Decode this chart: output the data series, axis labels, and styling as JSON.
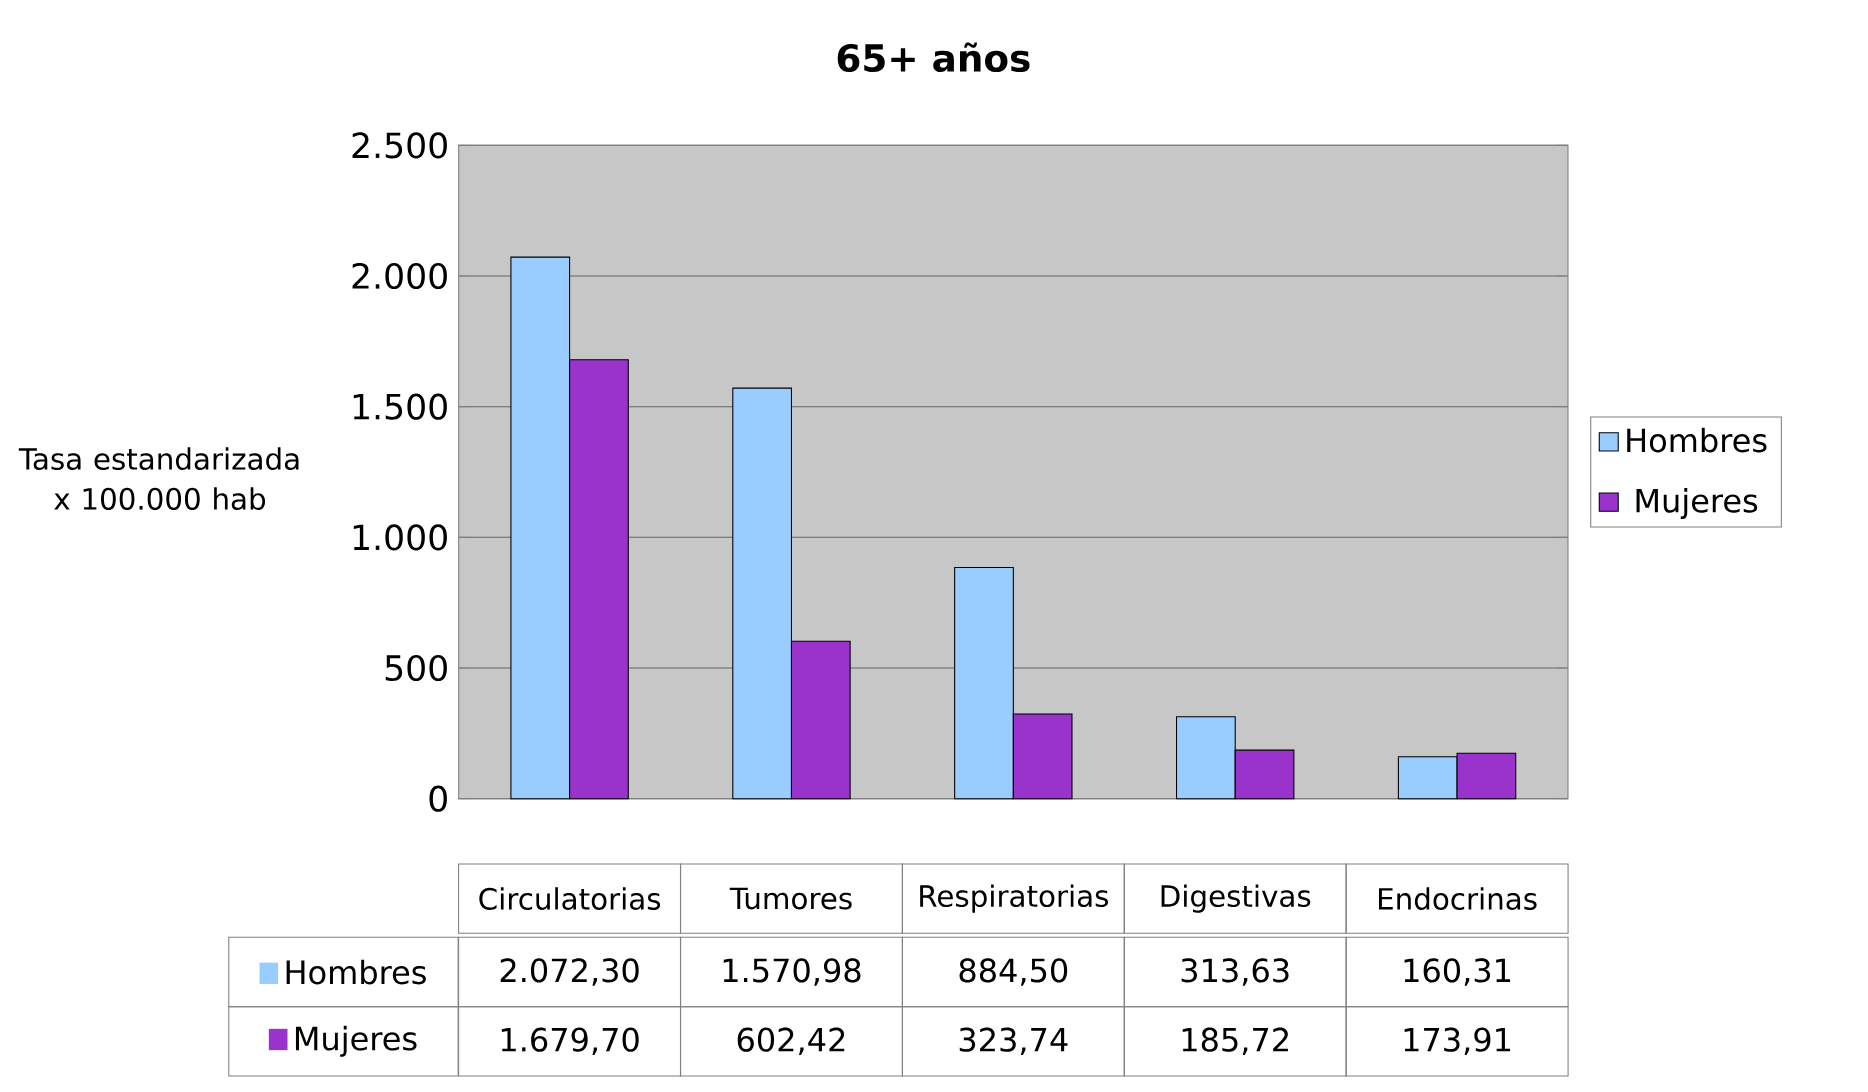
{
  "chart_data": {
    "type": "bar",
    "title": "65+ años",
    "ylabel": "Tasa estandarizada x 100.000 hab",
    "categories": [
      "Circulatorias",
      "Tumores",
      "Respiratorias",
      "Digestivas",
      "Endocrinas"
    ],
    "series": [
      {
        "name": "Hombres",
        "color": "#99ccff",
        "values": [
          2072.3,
          1570.98,
          884.5,
          313.63,
          160.31
        ],
        "value_labels": [
          "2.072,30",
          "1.570,98",
          "884,50",
          "313,63",
          "160,31"
        ]
      },
      {
        "name": "Mujeres",
        "color": "#9933cc",
        "values": [
          1679.7,
          602.42,
          323.74,
          185.72,
          173.91
        ],
        "value_labels": [
          "1.679,70",
          "602,42",
          "323,74",
          "185,72",
          "173,91"
        ]
      }
    ],
    "ylim": [
      0,
      2500
    ],
    "yticks": [
      0,
      {
        "value": 500,
        "label": "500"
      },
      {
        "value": 1000,
        "label": "1.000"
      },
      {
        "value": 1500,
        "label": "1.500"
      },
      {
        "value": 2000,
        "label": "2.000"
      },
      {
        "value": 2500,
        "label": "2.500"
      }
    ],
    "grid": "y",
    "legend": "right"
  }
}
